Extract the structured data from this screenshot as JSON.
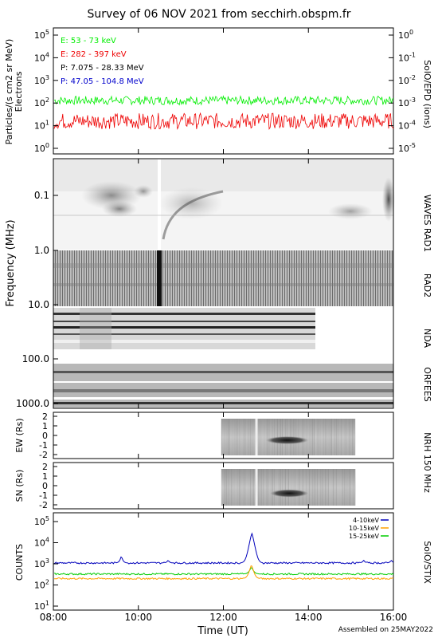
{
  "title": "Survey of 06 NOV 2021 from secchirh.obspm.fr",
  "footer": "Assembled on 25MAY2022",
  "xaxis": {
    "label": "Time (UT)",
    "range_hours": [
      8,
      16
    ],
    "ticks": [
      "08:00",
      "10:00",
      "12:00",
      "14:00",
      "16:00"
    ]
  },
  "chart_data": [
    {
      "type": "line",
      "panel": "epd",
      "ylabel_left": "Particles/(s cm2 sr MeV)",
      "ylabel_left2": "Electrons",
      "ylabel_right": "SolO/EPD (ions)",
      "y_scale": "log",
      "ylim": [
        1,
        100000
      ],
      "yticks_left": [
        "10^0",
        "10^1",
        "10^2",
        "10^3",
        "10^4",
        "10^5"
      ],
      "yticks_right": [
        "10^-5",
        "10^-4",
        "10^-3",
        "10^-2",
        "10^-1",
        "10^0"
      ],
      "series": [
        {
          "name": "E: 53 - 73 keV",
          "color": "#00ee00",
          "base": 130,
          "spread": 0.12
        },
        {
          "name": "E: 282 - 397 keV",
          "color": "#ee0000",
          "base": 16,
          "spread": 0.16
        },
        {
          "name": "P: 7.075 - 28.33 MeV",
          "color": "#000000",
          "base": null
        },
        {
          "name": "P: 47.05 - 104.8 MeV",
          "color": "#0000cc",
          "base": null
        }
      ]
    },
    {
      "type": "heatmap",
      "panel": "spectrogram",
      "ylabel": "Frequency (MHz)",
      "y_scale": "log",
      "yticks": [
        "0.1",
        "1.0",
        "10.0",
        "100.0",
        "1000.0"
      ],
      "instruments": [
        "WAVES RAD1",
        "RAD2",
        "NDA",
        "ORFEES"
      ]
    },
    {
      "type": "heatmap",
      "panel": "nrh-ew",
      "ylabel": "EW (Rs)",
      "yticks": [
        "2",
        "1",
        "0",
        "-1",
        "-2"
      ],
      "x_coverage_hours": [
        11.95,
        15.1
      ],
      "source_hours": [
        13.0,
        14.0
      ],
      "source_y": -0.5
    },
    {
      "type": "heatmap",
      "panel": "nrh-sn",
      "ylabel": "SN (Rs)",
      "yticks": [
        "2",
        "1",
        "0",
        "-1",
        "-2"
      ],
      "x_coverage_hours": [
        11.95,
        15.1
      ],
      "source_hours": [
        13.1,
        14.0
      ],
      "source_y": -0.8
    },
    {
      "type": "line",
      "panel": "stix",
      "ylabel": "COUNTS",
      "ylabel_right": "SolO/STIX",
      "y_scale": "log",
      "ylim": [
        1,
        100000
      ],
      "yticks": [
        "10^1",
        "10^2",
        "10^3",
        "10^4",
        "10^5"
      ],
      "series": [
        {
          "name": "4-10keV",
          "color": "#0000bb",
          "base": 1100,
          "peak_hour": 12.67,
          "peak": 28000,
          "small_peaks": [
            [
              9.6,
              2400
            ],
            [
              10.7,
              1500
            ],
            [
              15.3,
              1500
            ],
            [
              15.95,
              1500
            ]
          ]
        },
        {
          "name": "10-15keV",
          "color": "#ffa000",
          "base": 200,
          "peak_hour": 12.66,
          "peak": 900
        },
        {
          "name": "15-25keV",
          "color": "#00cc00",
          "base": 330,
          "peak_hour": 12.66,
          "peak": 700
        }
      ]
    }
  ],
  "instrument_labels": {
    "epd": "SolO/EPD (ions)",
    "rad1": "WAVES RAD1",
    "rad2": "RAD2",
    "nda": "NDA",
    "orfees": "ORFEES",
    "nrh": "NRH 150 MHz",
    "stix": "SolO/STIX"
  }
}
